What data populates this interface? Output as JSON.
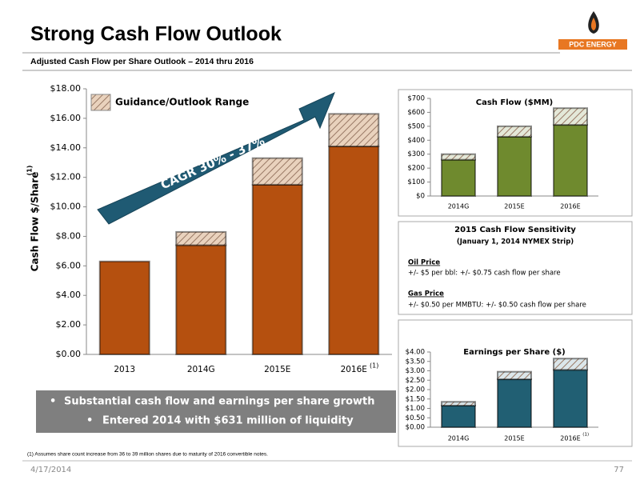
{
  "header": {
    "title": "Strong Cash Flow Outlook",
    "subtitle": "Adjusted Cash Flow per Share Outlook – 2014 thru 2016",
    "logo": "PDC ENERGY"
  },
  "chart_data": [
    {
      "type": "bar",
      "stacked": true,
      "ylabel": "Cash Flow $/Share",
      "ylabel_note": "(1)",
      "categories": [
        "2013",
        "2014G",
        "2015E",
        "2016E"
      ],
      "category_note": "(1)",
      "series": [
        {
          "color": "#b5500f",
          "values": [
            6.3,
            7.4,
            11.5,
            14.1
          ]
        },
        {
          "name": "Guidance/Outlook Range",
          "color": "#e9d2bd",
          "values": [
            null,
            0.9,
            1.8,
            2.2
          ]
        }
      ],
      "ylim": [
        0,
        18
      ],
      "yticks": [
        {
          "value": 0,
          "label": "$0.00"
        },
        {
          "value": 2,
          "label": "$2.00"
        },
        {
          "value": 4,
          "label": "$4.00"
        },
        {
          "value": 6,
          "label": "$6.00"
        },
        {
          "value": 8,
          "label": "$8.00"
        },
        {
          "value": 10,
          "label": "$10.00"
        },
        {
          "value": 12,
          "label": "$12.00"
        },
        {
          "value": 14,
          "label": "$14.00"
        },
        {
          "value": 16,
          "label": "$16.00"
        },
        {
          "value": 18,
          "label": "$18.00"
        }
      ],
      "annotation": "CAGR 30% - 37%"
    },
    {
      "type": "bar",
      "stacked": true,
      "title": "Cash Flow ($MM)",
      "categories": [
        "2014G",
        "2015E",
        "2016E"
      ],
      "series": [
        {
          "color": "#6f8a2e",
          "values": [
            260,
            425,
            510
          ]
        },
        {
          "color": "#e4e8d8",
          "values": [
            40,
            75,
            120
          ]
        }
      ],
      "ylim": [
        0,
        700
      ],
      "yticks": [
        {
          "value": 0,
          "label": "$0"
        },
        {
          "value": 100,
          "label": "$100"
        },
        {
          "value": 200,
          "label": "$200"
        },
        {
          "value": 300,
          "label": "$300"
        },
        {
          "value": 400,
          "label": "$400"
        },
        {
          "value": 500,
          "label": "$500"
        },
        {
          "value": 600,
          "label": "$600"
        },
        {
          "value": 700,
          "label": "$700"
        }
      ]
    },
    {
      "type": "bar",
      "stacked": true,
      "title": "Earnings per Share ($)",
      "categories": [
        "2014G",
        "2015E",
        "2016E"
      ],
      "category_note": "(1)",
      "series": [
        {
          "color": "#215f73",
          "values": [
            1.15,
            2.55,
            3.05
          ]
        },
        {
          "color": "#dbe6ea",
          "values": [
            0.2,
            0.4,
            0.6
          ]
        }
      ],
      "ylim": [
        0,
        4
      ],
      "yticks": [
        {
          "value": 0,
          "label": "$0.00"
        },
        {
          "value": 0.5,
          "label": "$0.50"
        },
        {
          "value": 1,
          "label": "$1.00"
        },
        {
          "value": 1.5,
          "label": "$1.50"
        },
        {
          "value": 2,
          "label": "$2.00"
        },
        {
          "value": 2.5,
          "label": "$2.50"
        },
        {
          "value": 3,
          "label": "$3.00"
        },
        {
          "value": 3.5,
          "label": "$3.50"
        },
        {
          "value": 4,
          "label": "$4.00"
        }
      ]
    }
  ],
  "sensitivity": {
    "title": "2015 Cash Flow Sensitivity",
    "subtitle": "(January 1, 2014 NYMEX Strip)",
    "items": [
      {
        "heading": "Oil Price",
        "text": "+/- $5 per bbl: +/- $0.75 cash flow per share"
      },
      {
        "heading": "Gas Price",
        "text": "+/- $0.50 per MMBTU: +/- $0.50 cash flow per share"
      }
    ]
  },
  "bullets": [
    "Substantial cash flow and earnings per share growth",
    "Entered 2014 with $631 million of liquidity"
  ],
  "footnote": "(1) Assumes share count increase from 36 to 39 million shares due to maturity of 2016 convertible notes.",
  "footer": {
    "date": "4/17/2014",
    "page": "77"
  }
}
